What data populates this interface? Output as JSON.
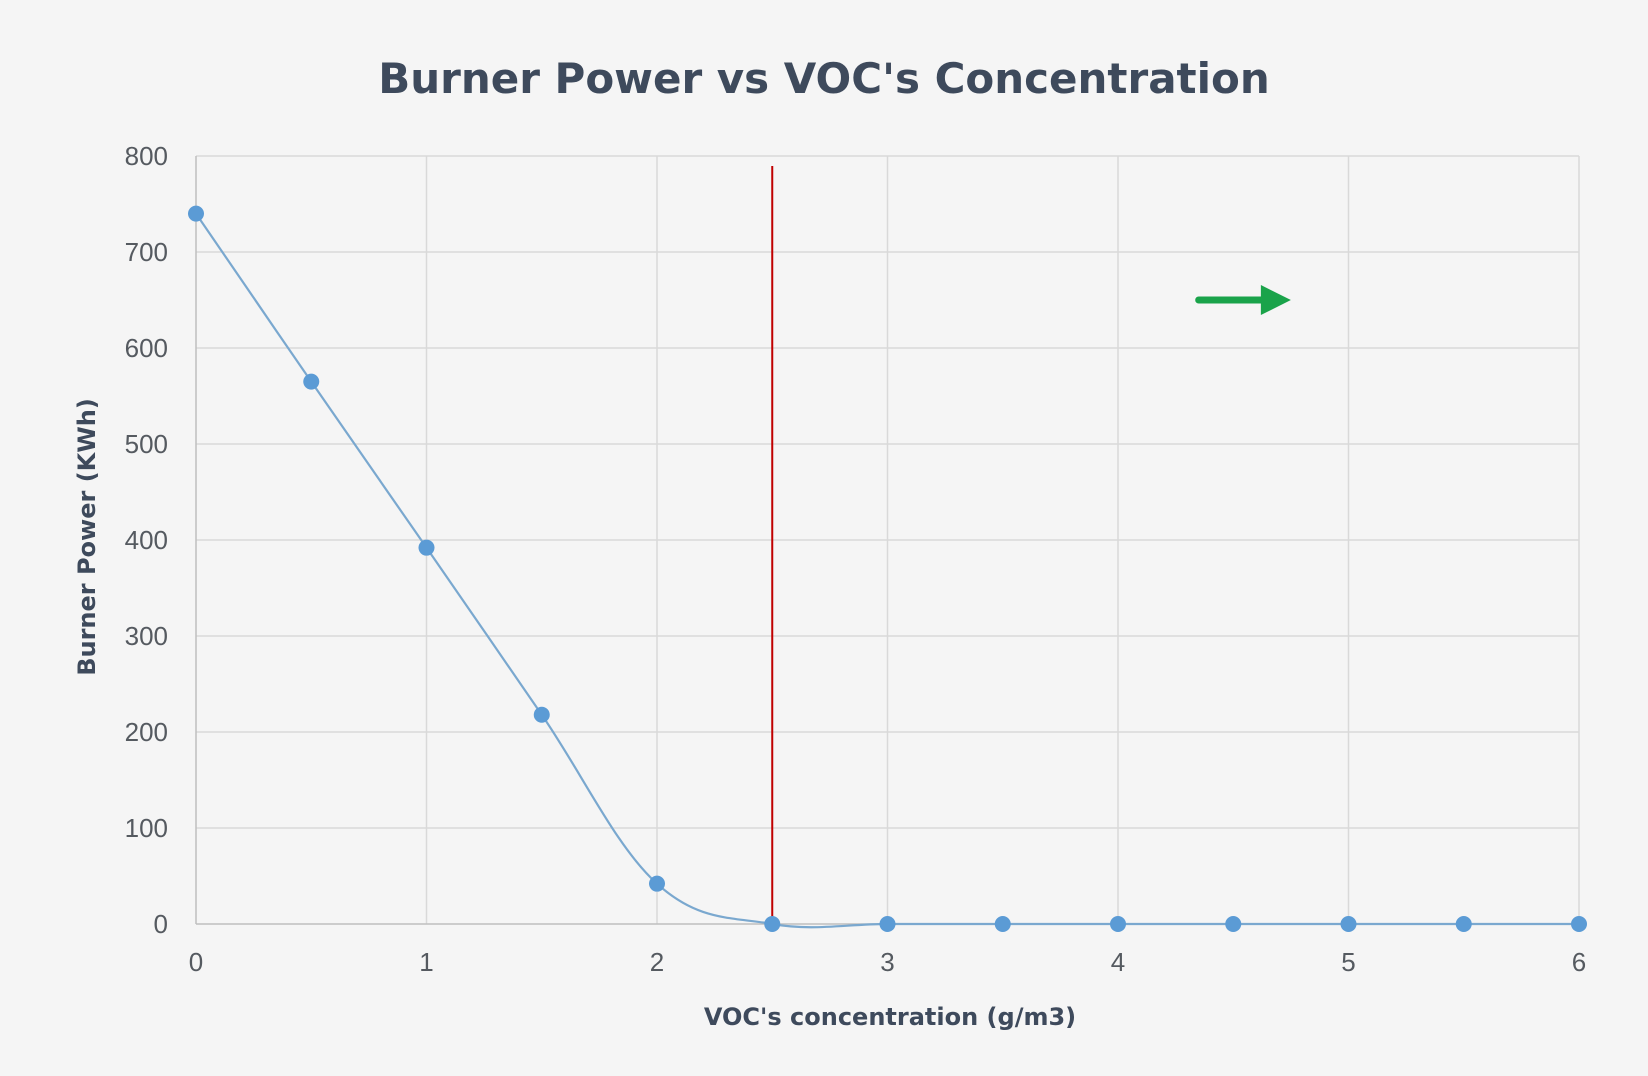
{
  "chart_data": {
    "type": "scatter",
    "title": "Burner Power vs VOC's Concentration",
    "xlabel": "VOC's concentration (g/m3)",
    "ylabel": "Burner Power (KWh)",
    "xlim": [
      0,
      6
    ],
    "ylim": [
      0,
      800
    ],
    "x_ticks": [
      "0",
      "1",
      "2",
      "3",
      "4",
      "5",
      "6"
    ],
    "y_ticks": [
      "0",
      "100",
      "200",
      "300",
      "400",
      "500",
      "600",
      "700",
      "800"
    ],
    "grid": true,
    "smooth_line": true,
    "series": [
      {
        "x": [
          0,
          0.5,
          1,
          1.5,
          2,
          2.5,
          3,
          3.5,
          4,
          4.5,
          5,
          5.5,
          6
        ],
        "y": [
          740,
          565,
          392,
          218,
          42,
          0,
          0,
          0,
          0,
          0,
          0,
          0,
          0
        ],
        "color": "#5b9bd5"
      }
    ],
    "annotations": [
      {
        "type": "vertical-line",
        "x": 2.5,
        "color": "#c00000"
      },
      {
        "type": "arrow",
        "direction": "right",
        "x_from": 4.35,
        "x_to": 4.75,
        "y": 650,
        "color": "#1aa34a"
      }
    ]
  }
}
